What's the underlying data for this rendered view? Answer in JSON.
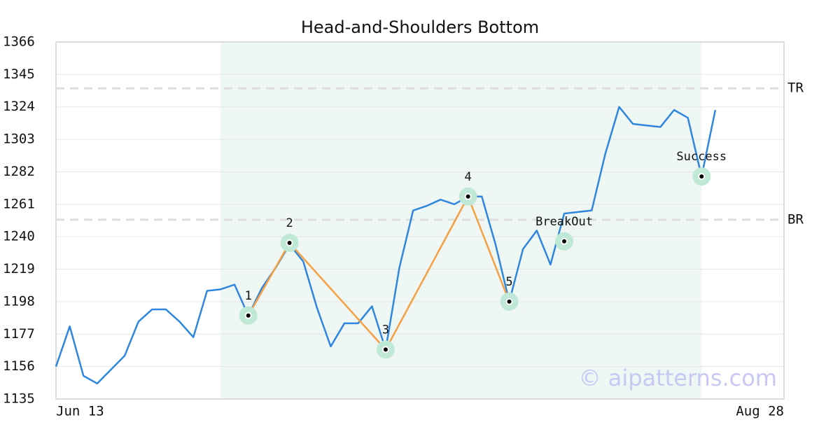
{
  "chart_data": {
    "type": "line",
    "title": "Head-and-Shoulders Bottom",
    "xlim": [
      0,
      53
    ],
    "xticks": [
      {
        "value": 0,
        "label": "Jun 13"
      },
      {
        "value": 53,
        "label": "Aug 28"
      }
    ],
    "ylim": [
      1135,
      1366
    ],
    "yticks": [
      1135,
      1156,
      1177,
      1198,
      1219,
      1240,
      1261,
      1282,
      1303,
      1324,
      1345,
      1366
    ],
    "grid": true,
    "shade": {
      "color": "#eef7f3",
      "xrange": [
        12,
        47
      ]
    },
    "series": [
      {
        "color": "#2e86de",
        "x": [
          0,
          1,
          2,
          3,
          4,
          5,
          6,
          7,
          8,
          9,
          10,
          11,
          12,
          13,
          14,
          15,
          16,
          17,
          18,
          19,
          20,
          21,
          22,
          23,
          24,
          25,
          26,
          27,
          28,
          29,
          30,
          31,
          32,
          33,
          34,
          35,
          36,
          37,
          38,
          39,
          40,
          41,
          42,
          43,
          44,
          45,
          46,
          47,
          48
        ],
        "values": [
          1156,
          1182,
          1150,
          1145,
          1154,
          1163,
          1185,
          1193,
          1193,
          1185,
          1175,
          1205,
          1206,
          1209,
          1189,
          1207,
          1220,
          1235,
          1224,
          1194,
          1169,
          1184,
          1184,
          1195,
          1167,
          1220,
          1257,
          1260,
          1264,
          1261,
          1266,
          1266,
          1235,
          1198,
          1232,
          1244,
          1222,
          1255,
          1256,
          1257,
          1294,
          1324,
          1313,
          1312,
          1311,
          1322,
          1317,
          1279,
          1322
        ]
      }
    ],
    "levels": [
      {
        "value": 1336,
        "label": "TR"
      },
      {
        "value": 1251,
        "label": "BR"
      }
    ],
    "pattern": {
      "color": "#f5a043",
      "x": [
        14,
        17,
        24,
        30,
        33
      ],
      "values": [
        1189,
        1236,
        1167,
        1266,
        1198
      ],
      "labels": [
        "1",
        "2",
        "3",
        "4",
        "5"
      ]
    },
    "markers": [
      {
        "x": 37,
        "value": 1237,
        "label": "BreakOut"
      },
      {
        "x": 47,
        "value": 1279,
        "label": "Success"
      }
    ],
    "watermark": "© aipatterns.com"
  }
}
